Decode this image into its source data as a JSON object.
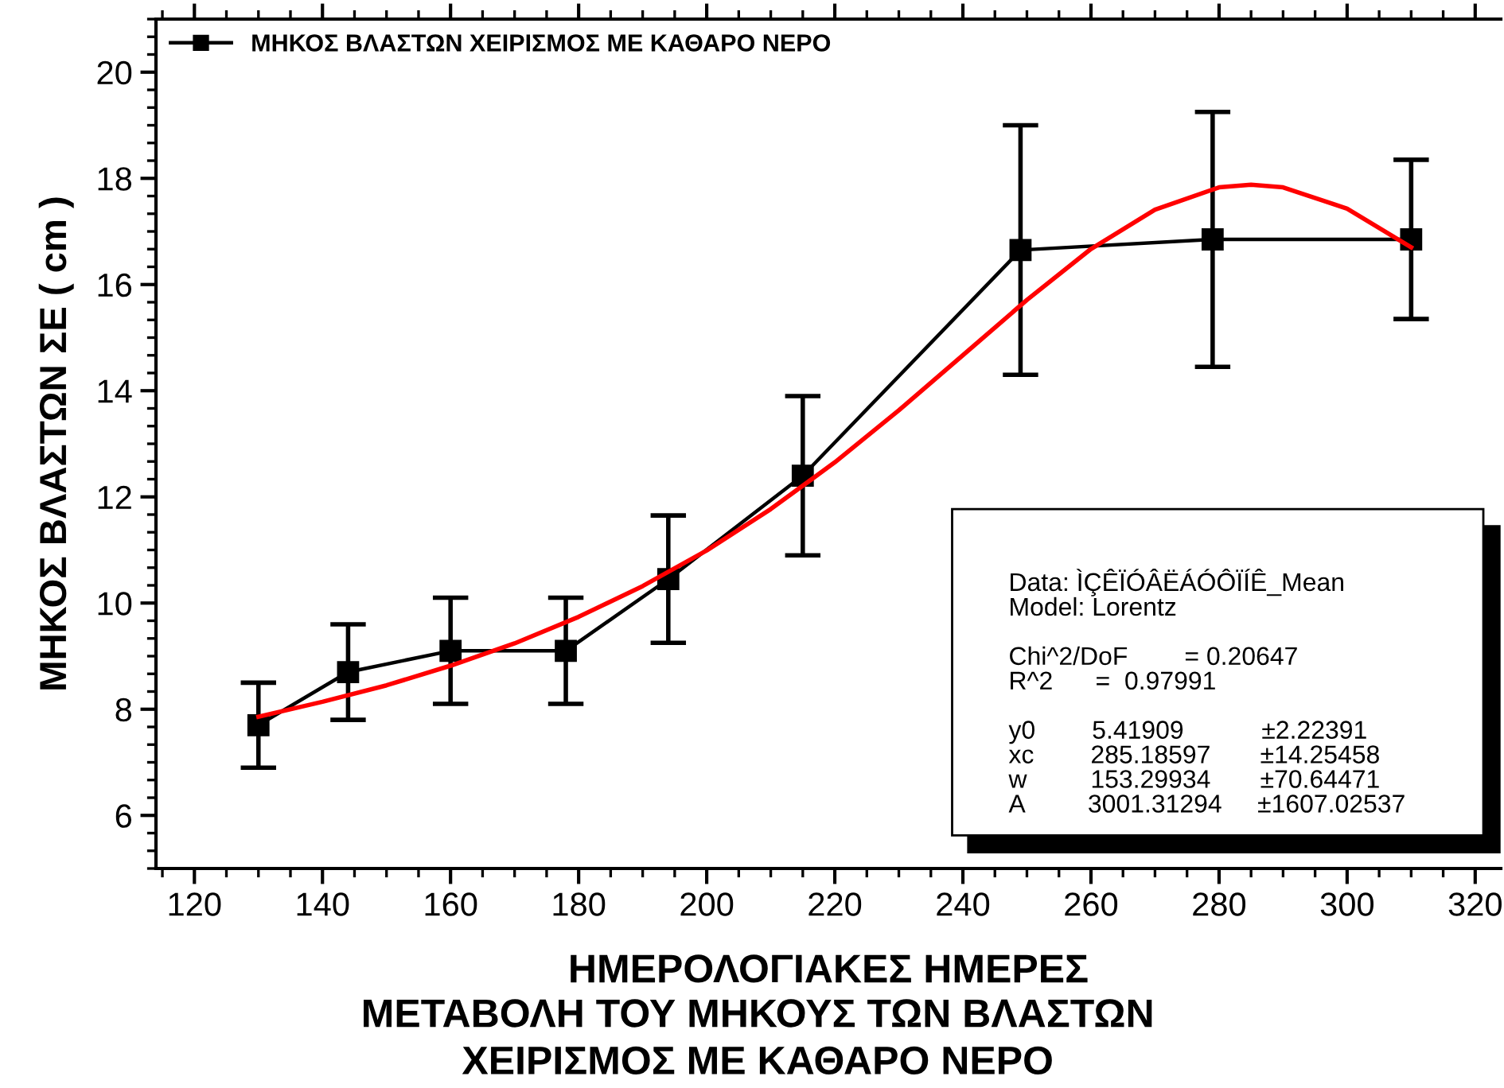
{
  "chart_data": {
    "type": "line",
    "xlabel": "ΗΜΕΡΟΛΟΓΙΑΚΕΣ ΗΜΕΡΕΣ",
    "title": "ΜΕΤΑΒΟΛΗ ΤΟΥ ΜΗΚΟΥΣ ΤΩΝ ΒΛΑΣΤΩΝ\nΧΕΙΡΙΣΜΟΣ ΜΕ ΚΑΘΑΡΟ ΝΕΡΟ",
    "ylabel": "ΜΗΚΟΣ ΒΛΑΣΤΩΝ ΣΕ ( cm )",
    "x": [
      130,
      144,
      160,
      178,
      194,
      215,
      249,
      279,
      310
    ],
    "series": [
      {
        "name": "ΜΗΚΟΣ ΒΛΑΣΤΩΝ ΧΕΙΡΙΣΜΟΣ ΜΕ ΚΑΘΑΡΟ ΝΕΡΟ",
        "color": "#000000",
        "marker": "square",
        "values": [
          7.7,
          8.7,
          9.1,
          9.1,
          10.45,
          12.4,
          16.65,
          16.85,
          16.85
        ],
        "errors": [
          0.8,
          0.9,
          1.0,
          1.0,
          1.2,
          1.5,
          2.35,
          2.4,
          1.5
        ]
      },
      {
        "type": "line",
        "color": "#ff0000",
        "marker": "none",
        "x": [
          130,
          140,
          150,
          160,
          170,
          180,
          190,
          200,
          210,
          220,
          230,
          240,
          250,
          260,
          270,
          280,
          285,
          290,
          300,
          310
        ],
        "values": [
          7.86,
          8.14,
          8.45,
          8.82,
          9.24,
          9.74,
          10.32,
          10.99,
          11.77,
          12.65,
          13.63,
          14.67,
          15.71,
          16.67,
          17.41,
          17.83,
          17.88,
          17.83,
          17.43,
          16.7
        ]
      }
    ],
    "xlim": [
      114,
      324
    ],
    "xticks": [
      120,
      140,
      160,
      180,
      200,
      220,
      240,
      260,
      280,
      300,
      320
    ],
    "ylim": [
      5,
      21
    ],
    "yticks": [
      6,
      8,
      10,
      12,
      14,
      16,
      18,
      20
    ],
    "grid": false,
    "legend": "top left",
    "annotations": [
      "Data: ÌÇÊÏÓÂËÁÓÔÏÍÊ_Mean\nModel: Lorentz\n\nChi^2/DoF        = 0.20647\nR^2      =  0.97991\n\ny0        5.41909           ±2.22391\nxc        285.18597       ±14.25458\nw         153.29934       ±70.64471\nA         3001.31294     ±1607.02537"
    ]
  }
}
